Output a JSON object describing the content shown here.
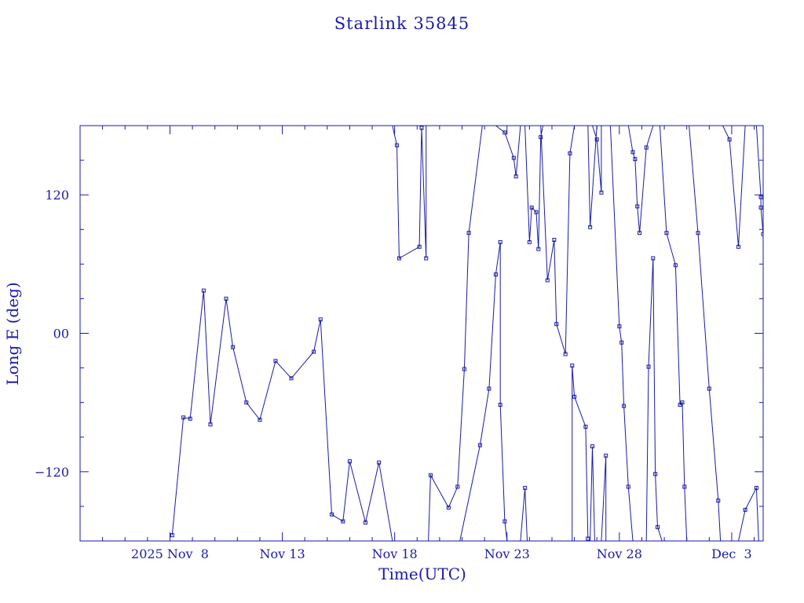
{
  "chart_data": {
    "type": "scatter",
    "title": "Starlink 35845",
    "xlabel": "Time(UTC)",
    "ylabel": "Long E (deg)",
    "x_tick_labels": [
      "2025 Nov  8",
      "Nov 13",
      "Nov 18",
      "Nov 23",
      "Nov 28",
      "Dec  3"
    ],
    "x_tick_values": [
      8,
      13,
      18,
      23,
      28,
      33
    ],
    "y_tick_labels": [
      "−120",
      "00",
      "120"
    ],
    "y_tick_values": [
      -120,
      0,
      120
    ],
    "xlim": [
      4.0,
      34.4
    ],
    "ylim": [
      -180,
      180
    ],
    "x_unit": "days since 2025 Nov 0 (UTC)",
    "wrap_longitude": true,
    "grid": false,
    "colors": {
      "line": "#1a1aa6",
      "axis": "#1a1aa6",
      "text": "#1a1aa6"
    },
    "series": [
      {
        "values": [
          [
            8.1,
            -175
          ],
          [
            8.6,
            -73
          ],
          [
            8.9,
            -74
          ],
          [
            9.5,
            37
          ],
          [
            9.8,
            -79
          ],
          [
            10.5,
            30
          ],
          [
            10.8,
            -12
          ],
          [
            11.4,
            -60
          ],
          [
            12.0,
            -75
          ],
          [
            12.7,
            -24
          ],
          [
            13.4,
            -39
          ],
          [
            14.4,
            -16
          ],
          [
            14.7,
            12
          ],
          [
            15.2,
            -157
          ],
          [
            15.7,
            -163
          ],
          [
            16.0,
            -111
          ],
          [
            16.7,
            -164
          ],
          [
            17.3,
            -112
          ],
          [
            17.9,
            -180
          ],
          [
            17.9,
            180
          ],
          [
            18.1,
            163
          ],
          [
            18.2,
            65
          ],
          [
            19.1,
            75
          ],
          [
            19.2,
            178
          ],
          [
            19.4,
            65
          ],
          [
            19.4,
            180
          ],
          [
            19.5,
            -180
          ],
          [
            19.6,
            -123
          ],
          [
            20.4,
            -151
          ],
          [
            20.8,
            -133
          ],
          [
            21.1,
            -31
          ],
          [
            21.3,
            87
          ],
          [
            21.9,
            180
          ],
          [
            20.9,
            -180
          ],
          [
            21.8,
            -97
          ],
          [
            22.2,
            -48
          ],
          [
            22.5,
            51
          ],
          [
            22.7,
            79
          ],
          [
            22.7,
            -62
          ],
          [
            22.9,
            -163
          ],
          [
            23.0,
            -180
          ],
          [
            22.5,
            180
          ],
          [
            22.9,
            174
          ],
          [
            23.3,
            152
          ],
          [
            23.4,
            136
          ],
          [
            23.6,
            180
          ],
          [
            23.6,
            -180
          ],
          [
            23.8,
            -134
          ],
          [
            23.9,
            -180
          ],
          [
            23.8,
            180
          ],
          [
            24.0,
            79
          ],
          [
            24.1,
            109
          ],
          [
            24.3,
            105
          ],
          [
            24.4,
            73
          ],
          [
            24.5,
            170
          ],
          [
            24.6,
            180
          ],
          [
            24.5,
            180
          ],
          [
            24.8,
            46
          ],
          [
            25.1,
            81
          ],
          [
            25.2,
            8
          ],
          [
            25.6,
            -18
          ],
          [
            25.8,
            156
          ],
          [
            26.0,
            180
          ],
          [
            25.9,
            -180
          ],
          [
            25.9,
            -28
          ],
          [
            26.0,
            -55
          ],
          [
            26.5,
            -81
          ],
          [
            26.6,
            -178
          ],
          [
            26.6,
            180
          ],
          [
            26.7,
            92
          ],
          [
            27.0,
            180
          ],
          [
            26.7,
            -180
          ],
          [
            26.8,
            -98
          ],
          [
            26.9,
            -180
          ],
          [
            26.8,
            180
          ],
          [
            27.0,
            168
          ],
          [
            27.2,
            122
          ],
          [
            27.2,
            180
          ],
          [
            27.2,
            -180
          ],
          [
            27.4,
            -106
          ],
          [
            27.4,
            -180
          ],
          [
            27.6,
            180
          ],
          [
            28.0,
            6
          ],
          [
            28.1,
            -8
          ],
          [
            28.2,
            -63
          ],
          [
            28.4,
            -133
          ],
          [
            28.6,
            -180
          ],
          [
            28.4,
            180
          ],
          [
            28.6,
            157
          ],
          [
            28.7,
            151
          ],
          [
            28.8,
            110
          ],
          [
            28.9,
            87
          ],
          [
            29.2,
            161
          ],
          [
            29.5,
            180
          ],
          [
            29.2,
            -180
          ],
          [
            29.3,
            -29
          ],
          [
            29.5,
            65
          ],
          [
            29.6,
            -122
          ],
          [
            29.7,
            -168
          ],
          [
            29.9,
            -180
          ],
          [
            29.8,
            180
          ],
          [
            30.1,
            87
          ],
          [
            30.5,
            59
          ],
          [
            30.7,
            -62
          ],
          [
            30.8,
            -60
          ],
          [
            30.9,
            -133
          ],
          [
            31.0,
            -180
          ],
          [
            31.1,
            180
          ],
          [
            31.5,
            87
          ],
          [
            32.0,
            -48
          ],
          [
            32.4,
            -145
          ],
          [
            32.5,
            -180
          ],
          [
            32.6,
            180
          ],
          [
            32.9,
            168
          ],
          [
            33.3,
            75
          ],
          [
            33.6,
            180
          ],
          [
            33.3,
            -180
          ],
          [
            33.6,
            -153
          ],
          [
            34.1,
            -134
          ],
          [
            34.2,
            -180
          ],
          [
            34.1,
            180
          ],
          [
            34.3,
            118
          ],
          [
            34.3,
            109
          ],
          [
            34.4,
            86
          ]
        ]
      }
    ]
  }
}
